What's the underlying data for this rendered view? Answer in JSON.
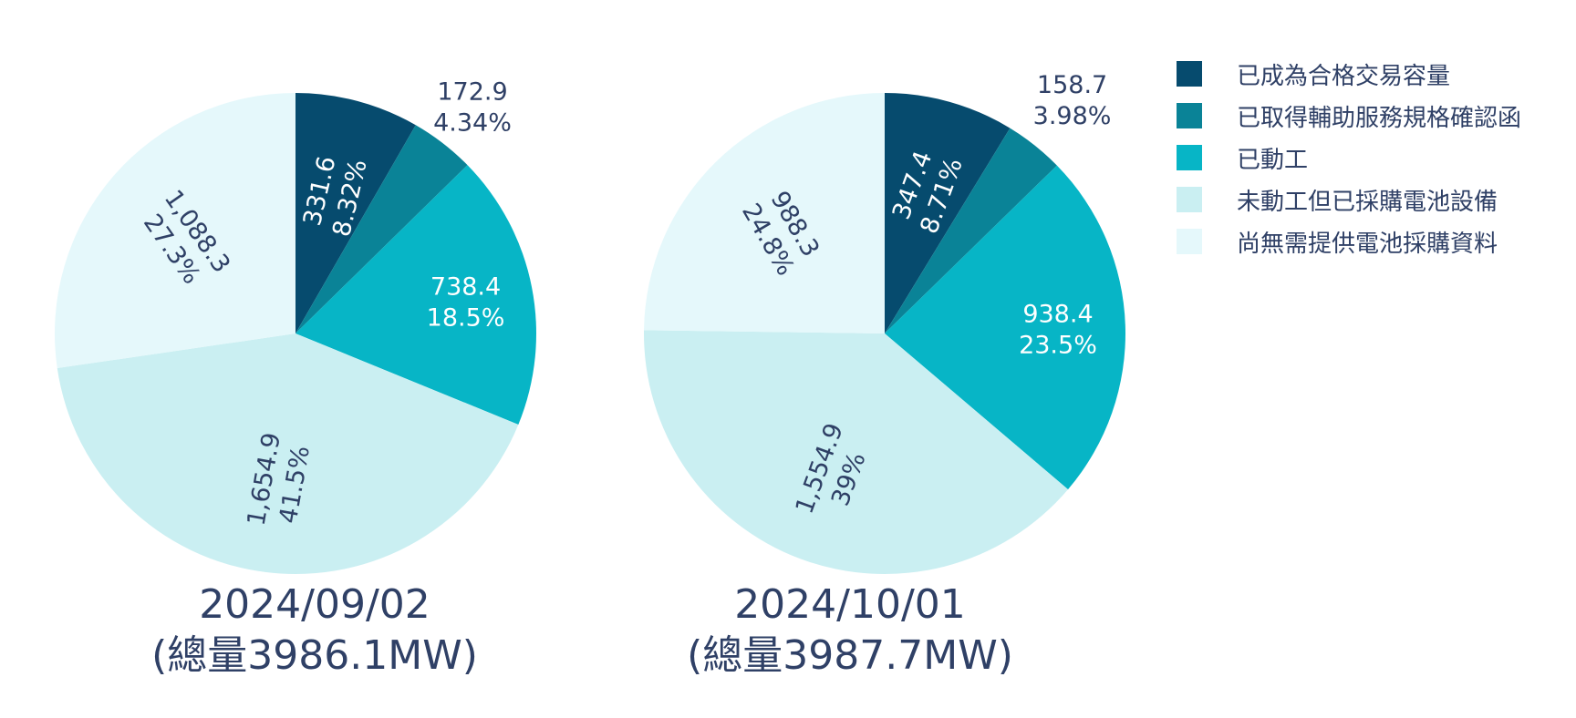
{
  "chart_data": [
    {
      "type": "pie",
      "title_line1": "2024/09/02",
      "title_line2": "(總量3986.1MW)",
      "slices": [
        {
          "label": "已成為合格交易容量",
          "value": 331.6,
          "value_text": "331.6",
          "percent_text": "8.32%"
        },
        {
          "label": "已取得輔助服務規格確認函",
          "value": 172.9,
          "value_text": "172.9",
          "percent_text": "4.34%"
        },
        {
          "label": "已動工",
          "value": 738.4,
          "value_text": "738.4",
          "percent_text": "18.5%"
        },
        {
          "label": "未動工但已採購電池設備",
          "value": 1654.9,
          "value_text": "1,654.9",
          "percent_text": "41.5%"
        },
        {
          "label": "尚無需提供電池採購資料",
          "value": 1088.3,
          "value_text": "1,088.3",
          "percent_text": "27.3%"
        }
      ]
    },
    {
      "type": "pie",
      "title_line1": "2024/10/01",
      "title_line2": "(總量3987.7MW)",
      "slices": [
        {
          "label": "已成為合格交易容量",
          "value": 347.4,
          "value_text": "347.4",
          "percent_text": "8.71%"
        },
        {
          "label": "已取得輔助服務規格確認函",
          "value": 158.7,
          "value_text": "158.7",
          "percent_text": "3.98%"
        },
        {
          "label": "已動工",
          "value": 938.4,
          "value_text": "938.4",
          "percent_text": "23.5%"
        },
        {
          "label": "未動工但已採購電池設備",
          "value": 1554.9,
          "value_text": "1,554.9",
          "percent_text": "39%"
        },
        {
          "label": "尚無需提供電池採購資料",
          "value": 988.3,
          "value_text": "988.3",
          "percent_text": "24.8%"
        }
      ]
    }
  ],
  "legend": [
    {
      "label": "已成為合格交易容量",
      "color": "#064b6e"
    },
    {
      "label": "已取得輔助服務規格確認函",
      "color": "#0a8397"
    },
    {
      "label": "已動工",
      "color": "#07b5c6"
    },
    {
      "label": "未動工但已採購電池設備",
      "color": "#caeff2"
    },
    {
      "label": "尚無需提供電池採購資料",
      "color": "#e5f8fb"
    }
  ],
  "label_colors": {
    "dark": "#ffffff",
    "light": "#2f4066"
  }
}
